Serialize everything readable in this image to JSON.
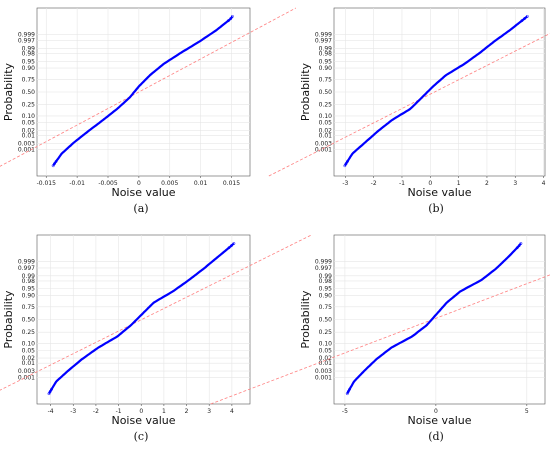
{
  "chart_data": [
    {
      "type": "scatter",
      "caption": "(a)",
      "xlabel": "Noise value",
      "ylabel": "Probability",
      "xlim": [
        -0.0165,
        0.018
      ],
      "xticks": [
        -0.015,
        -0.01,
        -0.005,
        0,
        0.005,
        0.01,
        0.015
      ],
      "xtick_labels": [
        "-0.015",
        "-0.01",
        "-0.005",
        "0",
        "0.005",
        "0.01",
        "0.015"
      ],
      "prob_ticks": [
        0.001,
        0.003,
        0.01,
        0.02,
        0.05,
        0.1,
        0.25,
        0.5,
        0.75,
        0.9,
        0.95,
        0.98,
        0.99,
        0.997,
        0.999
      ],
      "prob_labels": [
        "0.001",
        "0.003",
        "0.01",
        "0.02",
        "0.05",
        "0.10",
        "0.25",
        "0.50",
        "0.75",
        "0.90",
        "0.95",
        "0.98",
        "0.99",
        "0.997",
        "0.999"
      ],
      "grid": true,
      "series": [
        {
          "role": "data",
          "color": "#0000ff",
          "x": [
            -0.0148,
            -0.0138,
            -0.0125,
            -0.0105,
            -0.0082,
            -0.0058,
            -0.0035,
            -0.0015,
            0.0,
            0.0018,
            0.004,
            0.0068,
            0.0098,
            0.0125,
            0.0148,
            0.0162
          ]
        },
        {
          "role": "reference",
          "color": "#ff7f7f",
          "style": "dashed",
          "x": [
            -0.0113,
            0.0113
          ]
        }
      ]
    },
    {
      "type": "scatter",
      "caption": "(b)",
      "xlabel": "Noise value",
      "ylabel": "Probability",
      "xlim": [
        -3.4,
        4.05
      ],
      "xticks": [
        -3,
        -2,
        -1,
        0,
        1,
        2,
        3,
        4
      ],
      "xtick_labels": [
        "-3",
        "-2",
        "-1",
        "0",
        "1",
        "2",
        "3",
        "4"
      ],
      "prob_ticks": [
        0.001,
        0.003,
        0.01,
        0.02,
        0.05,
        0.1,
        0.25,
        0.5,
        0.75,
        0.9,
        0.95,
        0.98,
        0.99,
        0.997,
        0.999
      ],
      "prob_labels": [
        "0.001",
        "0.003",
        "0.01",
        "0.02",
        "0.05",
        "0.10",
        "0.25",
        "0.50",
        "0.75",
        "0.90",
        "0.95",
        "0.98",
        "0.99",
        "0.997",
        "0.999"
      ],
      "grid": true,
      "series": [
        {
          "role": "data",
          "color": "#0000ff",
          "x": [
            -3.2,
            -3.0,
            -2.75,
            -2.3,
            -1.85,
            -1.35,
            -0.7,
            -0.3,
            0.1,
            0.55,
            1.2,
            1.75,
            2.25,
            2.8,
            3.3,
            3.8
          ]
        },
        {
          "role": "reference",
          "color": "#ff7f7f",
          "style": "dashed",
          "x": [
            -2.45,
            2.75
          ]
        }
      ]
    },
    {
      "type": "scatter",
      "caption": "(c)",
      "xlabel": "Noise value",
      "ylabel": "Probability",
      "xlim": [
        -4.6,
        4.8
      ],
      "xticks": [
        -4,
        -3,
        -2,
        -1,
        0,
        1,
        2,
        3,
        4
      ],
      "xtick_labels": [
        "-4",
        "-3",
        "-2",
        "-1",
        "0",
        "1",
        "2",
        "3",
        "4"
      ],
      "prob_ticks": [
        0.001,
        0.003,
        0.01,
        0.02,
        0.05,
        0.1,
        0.25,
        0.5,
        0.75,
        0.9,
        0.95,
        0.98,
        0.99,
        0.997,
        0.999
      ],
      "prob_labels": [
        "0.001",
        "0.003",
        "0.01",
        "0.02",
        "0.05",
        "0.10",
        "0.25",
        "0.50",
        "0.75",
        "0.90",
        "0.95",
        "0.98",
        "0.99",
        "0.997",
        "0.999"
      ],
      "grid": true,
      "series": [
        {
          "role": "data",
          "color": "#0000ff",
          "x": [
            -4.3,
            -4.05,
            -3.75,
            -3.2,
            -2.6,
            -1.9,
            -1.05,
            -0.45,
            0.05,
            0.55,
            1.4,
            2.1,
            2.75,
            3.35,
            3.95,
            4.5
          ]
        },
        {
          "role": "reference",
          "color": "#ff7f7f",
          "style": "dashed",
          "x": [
            -3.3,
            3.35
          ]
        }
      ]
    },
    {
      "type": "scatter",
      "caption": "(d)",
      "xlabel": "Noise value",
      "ylabel": "Probability",
      "xlim": [
        -5.6,
        6.0
      ],
      "xticks": [
        -5,
        0,
        5
      ],
      "xtick_labels": [
        "-5",
        "0",
        "5"
      ],
      "prob_ticks": [
        0.001,
        0.003,
        0.01,
        0.02,
        0.05,
        0.1,
        0.25,
        0.5,
        0.75,
        0.9,
        0.95,
        0.98,
        0.99,
        0.997,
        0.999
      ],
      "prob_labels": [
        "0.001",
        "0.003",
        "0.01",
        "0.02",
        "0.05",
        "0.10",
        "0.25",
        "0.50",
        "0.75",
        "0.90",
        "0.95",
        "0.98",
        "0.99",
        "0.997",
        "0.999"
      ],
      "grid": true,
      "series": [
        {
          "role": "data",
          "color": "#0000ff",
          "x": [
            -5.1,
            -4.85,
            -4.5,
            -3.9,
            -3.25,
            -2.45,
            -1.3,
            -0.5,
            0.05,
            0.6,
            1.35,
            2.5,
            3.3,
            3.95,
            4.55,
            5.05
          ]
        },
        {
          "role": "reference",
          "color": "#ff7f7f",
          "style": "dashed",
          "x": [
            -5.6,
            5.25
          ]
        }
      ]
    }
  ]
}
